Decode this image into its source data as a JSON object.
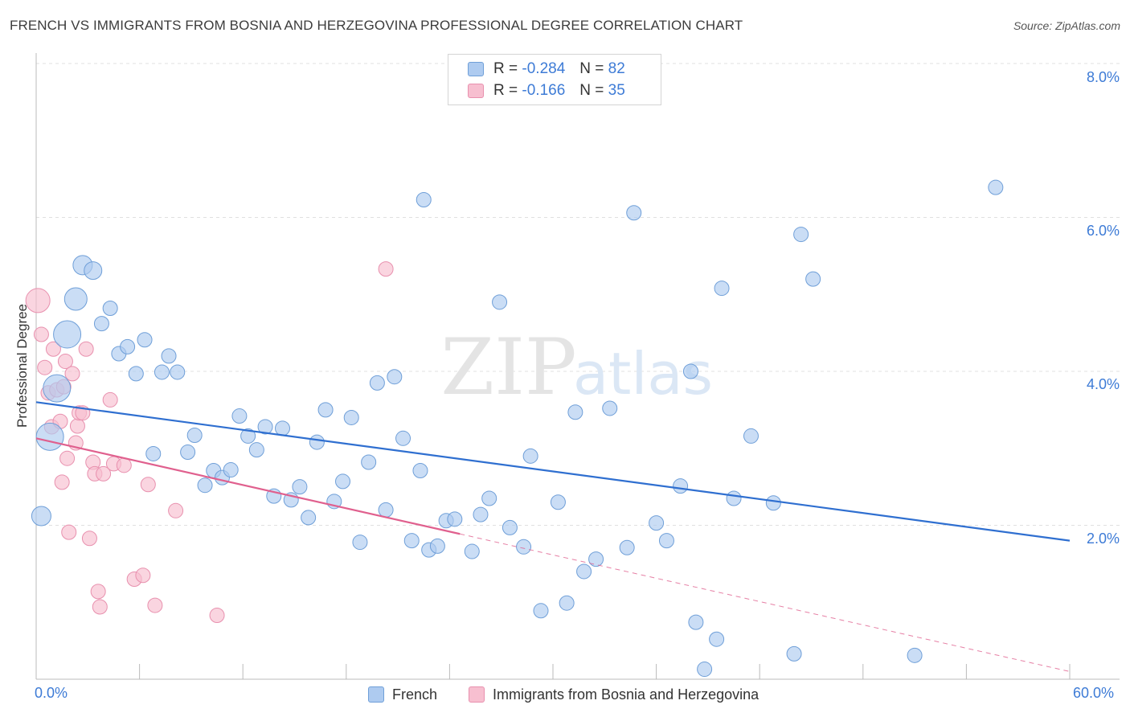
{
  "header": {
    "title": "FRENCH VS IMMIGRANTS FROM BOSNIA AND HERZEGOVINA PROFESSIONAL DEGREE CORRELATION CHART",
    "source": "Source: ZipAtlas.com"
  },
  "watermark": {
    "zip": "ZIP",
    "atlas": "atlas"
  },
  "legend": {
    "rows": [
      {
        "r_label": "R =",
        "r_value": "-0.284",
        "n_label": "N =",
        "n_value": "82"
      },
      {
        "r_label": "R =",
        "r_value": "-0.166",
        "n_label": "N =",
        "n_value": "35"
      }
    ]
  },
  "colors": {
    "french_fill": "#aecbf0",
    "french_stroke": "#6f9fd8",
    "french_line": "#2f6fd0",
    "bosnia_fill": "#f7bfd0",
    "bosnia_stroke": "#e890ae",
    "bosnia_line": "#e0608e",
    "axis_text": "#3d7bd6",
    "grid": "#e0e0e0"
  },
  "chart_data": {
    "type": "scatter",
    "title": "FRENCH VS IMMIGRANTS FROM BOSNIA AND HERZEGOVINA PROFESSIONAL DEGREE CORRELATION CHART",
    "xlabel": "",
    "ylabel": "Professional Degree",
    "xlim": [
      0,
      60
    ],
    "ylim": [
      0,
      8.0
    ],
    "x_ticks": [
      "0.0%",
      "60.0%"
    ],
    "y_ticks": [
      {
        "value": 2,
        "label": "2.0%"
      },
      {
        "value": 4,
        "label": "4.0%"
      },
      {
        "value": 6,
        "label": "6.0%"
      },
      {
        "value": 8,
        "label": "8.0%"
      }
    ],
    "series": [
      {
        "name": "French",
        "r": -0.284,
        "n": 82,
        "trend": {
          "x0": 0,
          "y0": 3.6,
          "x1": 60,
          "y1": 1.8,
          "solid_to": 60
        },
        "points": [
          {
            "x": 0.3,
            "y": 2.12,
            "s": 12
          },
          {
            "x": 0.8,
            "y": 3.15,
            "s": 17
          },
          {
            "x": 1.2,
            "y": 3.78,
            "s": 17
          },
          {
            "x": 1.8,
            "y": 4.48,
            "s": 17
          },
          {
            "x": 2.3,
            "y": 4.94,
            "s": 14
          },
          {
            "x": 2.7,
            "y": 5.38,
            "s": 12
          },
          {
            "x": 3.3,
            "y": 5.31,
            "s": 11
          },
          {
            "x": 3.8,
            "y": 4.62,
            "s": 9
          },
          {
            "x": 4.3,
            "y": 4.82,
            "s": 9
          },
          {
            "x": 4.8,
            "y": 4.23,
            "s": 9
          },
          {
            "x": 5.3,
            "y": 4.32,
            "s": 9
          },
          {
            "x": 5.8,
            "y": 3.97,
            "s": 9
          },
          {
            "x": 6.3,
            "y": 4.41,
            "s": 9
          },
          {
            "x": 6.8,
            "y": 2.93,
            "s": 9
          },
          {
            "x": 7.3,
            "y": 3.99,
            "s": 9
          },
          {
            "x": 7.7,
            "y": 4.2,
            "s": 9
          },
          {
            "x": 8.2,
            "y": 3.99,
            "s": 9
          },
          {
            "x": 8.8,
            "y": 2.95,
            "s": 9
          },
          {
            "x": 9.2,
            "y": 3.17,
            "s": 9
          },
          {
            "x": 9.8,
            "y": 2.52,
            "s": 9
          },
          {
            "x": 10.3,
            "y": 2.71,
            "s": 9
          },
          {
            "x": 10.8,
            "y": 2.62,
            "s": 9
          },
          {
            "x": 11.3,
            "y": 2.72,
            "s": 9
          },
          {
            "x": 11.8,
            "y": 3.42,
            "s": 9
          },
          {
            "x": 12.3,
            "y": 3.16,
            "s": 9
          },
          {
            "x": 12.8,
            "y": 2.98,
            "s": 9
          },
          {
            "x": 13.3,
            "y": 3.28,
            "s": 9
          },
          {
            "x": 13.8,
            "y": 2.38,
            "s": 9
          },
          {
            "x": 14.3,
            "y": 3.26,
            "s": 9
          },
          {
            "x": 14.8,
            "y": 2.33,
            "s": 9
          },
          {
            "x": 15.3,
            "y": 2.5,
            "s": 9
          },
          {
            "x": 15.8,
            "y": 2.1,
            "s": 9
          },
          {
            "x": 16.3,
            "y": 3.08,
            "s": 9
          },
          {
            "x": 16.8,
            "y": 3.5,
            "s": 9
          },
          {
            "x": 17.3,
            "y": 2.31,
            "s": 9
          },
          {
            "x": 17.8,
            "y": 2.57,
            "s": 9
          },
          {
            "x": 18.3,
            "y": 3.4,
            "s": 9
          },
          {
            "x": 18.8,
            "y": 1.78,
            "s": 9
          },
          {
            "x": 19.3,
            "y": 2.82,
            "s": 9
          },
          {
            "x": 19.8,
            "y": 3.85,
            "s": 9
          },
          {
            "x": 20.3,
            "y": 2.2,
            "s": 9
          },
          {
            "x": 20.8,
            "y": 3.93,
            "s": 9
          },
          {
            "x": 21.3,
            "y": 3.13,
            "s": 9
          },
          {
            "x": 21.8,
            "y": 1.8,
            "s": 9
          },
          {
            "x": 22.3,
            "y": 2.71,
            "s": 9
          },
          {
            "x": 22.8,
            "y": 1.68,
            "s": 9
          },
          {
            "x": 23.3,
            "y": 1.73,
            "s": 9
          },
          {
            "x": 23.8,
            "y": 2.06,
            "s": 9
          },
          {
            "x": 22.5,
            "y": 6.23,
            "s": 9
          },
          {
            "x": 24.3,
            "y": 2.08,
            "s": 9
          },
          {
            "x": 25.3,
            "y": 1.66,
            "s": 9
          },
          {
            "x": 25.8,
            "y": 2.14,
            "s": 9
          },
          {
            "x": 26.3,
            "y": 2.35,
            "s": 9
          },
          {
            "x": 26.9,
            "y": 4.9,
            "s": 9
          },
          {
            "x": 27.5,
            "y": 1.97,
            "s": 9
          },
          {
            "x": 28.3,
            "y": 1.72,
            "s": 9
          },
          {
            "x": 28.7,
            "y": 2.9,
            "s": 9
          },
          {
            "x": 29.3,
            "y": 0.89,
            "s": 9
          },
          {
            "x": 30.3,
            "y": 2.3,
            "s": 9
          },
          {
            "x": 30.8,
            "y": 0.99,
            "s": 9
          },
          {
            "x": 31.3,
            "y": 3.47,
            "s": 9
          },
          {
            "x": 31.8,
            "y": 1.4,
            "s": 9
          },
          {
            "x": 32.5,
            "y": 1.56,
            "s": 9
          },
          {
            "x": 33.3,
            "y": 3.52,
            "s": 9
          },
          {
            "x": 34.3,
            "y": 1.71,
            "s": 9
          },
          {
            "x": 34.7,
            "y": 6.06,
            "s": 9
          },
          {
            "x": 36.0,
            "y": 2.03,
            "s": 9
          },
          {
            "x": 36.6,
            "y": 1.8,
            "s": 9
          },
          {
            "x": 37.4,
            "y": 2.51,
            "s": 9
          },
          {
            "x": 38.0,
            "y": 4.0,
            "s": 9
          },
          {
            "x": 38.3,
            "y": 0.74,
            "s": 9
          },
          {
            "x": 38.8,
            "y": 0.13,
            "s": 9
          },
          {
            "x": 39.5,
            "y": 0.52,
            "s": 9
          },
          {
            "x": 39.8,
            "y": 5.08,
            "s": 9
          },
          {
            "x": 40.5,
            "y": 2.35,
            "s": 9
          },
          {
            "x": 41.5,
            "y": 3.16,
            "s": 9
          },
          {
            "x": 42.8,
            "y": 2.29,
            "s": 9
          },
          {
            "x": 44.0,
            "y": 0.33,
            "s": 9
          },
          {
            "x": 44.4,
            "y": 5.78,
            "s": 9
          },
          {
            "x": 45.1,
            "y": 5.2,
            "s": 9
          },
          {
            "x": 51.0,
            "y": 0.31,
            "s": 9
          },
          {
            "x": 55.7,
            "y": 6.39,
            "s": 9
          }
        ]
      },
      {
        "name": "Immigrants from Bosnia and Herzegovina",
        "r": -0.166,
        "n": 35,
        "trend": {
          "x0": 0,
          "y0": 3.13,
          "x1": 60,
          "y1": 0.1,
          "solid_to": 24.6
        },
        "points": [
          {
            "x": 0.1,
            "y": 4.92,
            "s": 15
          },
          {
            "x": 0.3,
            "y": 4.48,
            "s": 9
          },
          {
            "x": 0.5,
            "y": 4.05,
            "s": 9
          },
          {
            "x": 0.7,
            "y": 3.72,
            "s": 9
          },
          {
            "x": 0.9,
            "y": 3.28,
            "s": 9
          },
          {
            "x": 1.0,
            "y": 4.29,
            "s": 9
          },
          {
            "x": 1.2,
            "y": 3.76,
            "s": 9
          },
          {
            "x": 1.4,
            "y": 3.35,
            "s": 9
          },
          {
            "x": 1.5,
            "y": 2.56,
            "s": 9
          },
          {
            "x": 1.6,
            "y": 3.8,
            "s": 9
          },
          {
            "x": 1.7,
            "y": 4.13,
            "s": 9
          },
          {
            "x": 1.8,
            "y": 2.87,
            "s": 9
          },
          {
            "x": 1.9,
            "y": 1.91,
            "s": 9
          },
          {
            "x": 2.1,
            "y": 3.97,
            "s": 9
          },
          {
            "x": 2.3,
            "y": 3.07,
            "s": 9
          },
          {
            "x": 2.4,
            "y": 3.29,
            "s": 9
          },
          {
            "x": 2.5,
            "y": 3.46,
            "s": 9
          },
          {
            "x": 2.7,
            "y": 3.46,
            "s": 9
          },
          {
            "x": 2.9,
            "y": 4.29,
            "s": 9
          },
          {
            "x": 3.1,
            "y": 1.83,
            "s": 9
          },
          {
            "x": 3.3,
            "y": 2.82,
            "s": 9
          },
          {
            "x": 3.4,
            "y": 2.67,
            "s": 9
          },
          {
            "x": 3.6,
            "y": 1.14,
            "s": 9
          },
          {
            "x": 3.7,
            "y": 0.94,
            "s": 9
          },
          {
            "x": 3.9,
            "y": 2.67,
            "s": 9
          },
          {
            "x": 4.3,
            "y": 3.63,
            "s": 9
          },
          {
            "x": 4.5,
            "y": 2.8,
            "s": 9
          },
          {
            "x": 5.1,
            "y": 2.78,
            "s": 9
          },
          {
            "x": 5.7,
            "y": 1.3,
            "s": 9
          },
          {
            "x": 6.2,
            "y": 1.35,
            "s": 9
          },
          {
            "x": 6.5,
            "y": 2.53,
            "s": 9
          },
          {
            "x": 6.9,
            "y": 0.96,
            "s": 9
          },
          {
            "x": 8.1,
            "y": 2.19,
            "s": 9
          },
          {
            "x": 10.5,
            "y": 0.83,
            "s": 9
          },
          {
            "x": 20.3,
            "y": 5.33,
            "s": 9
          }
        ]
      }
    ]
  }
}
